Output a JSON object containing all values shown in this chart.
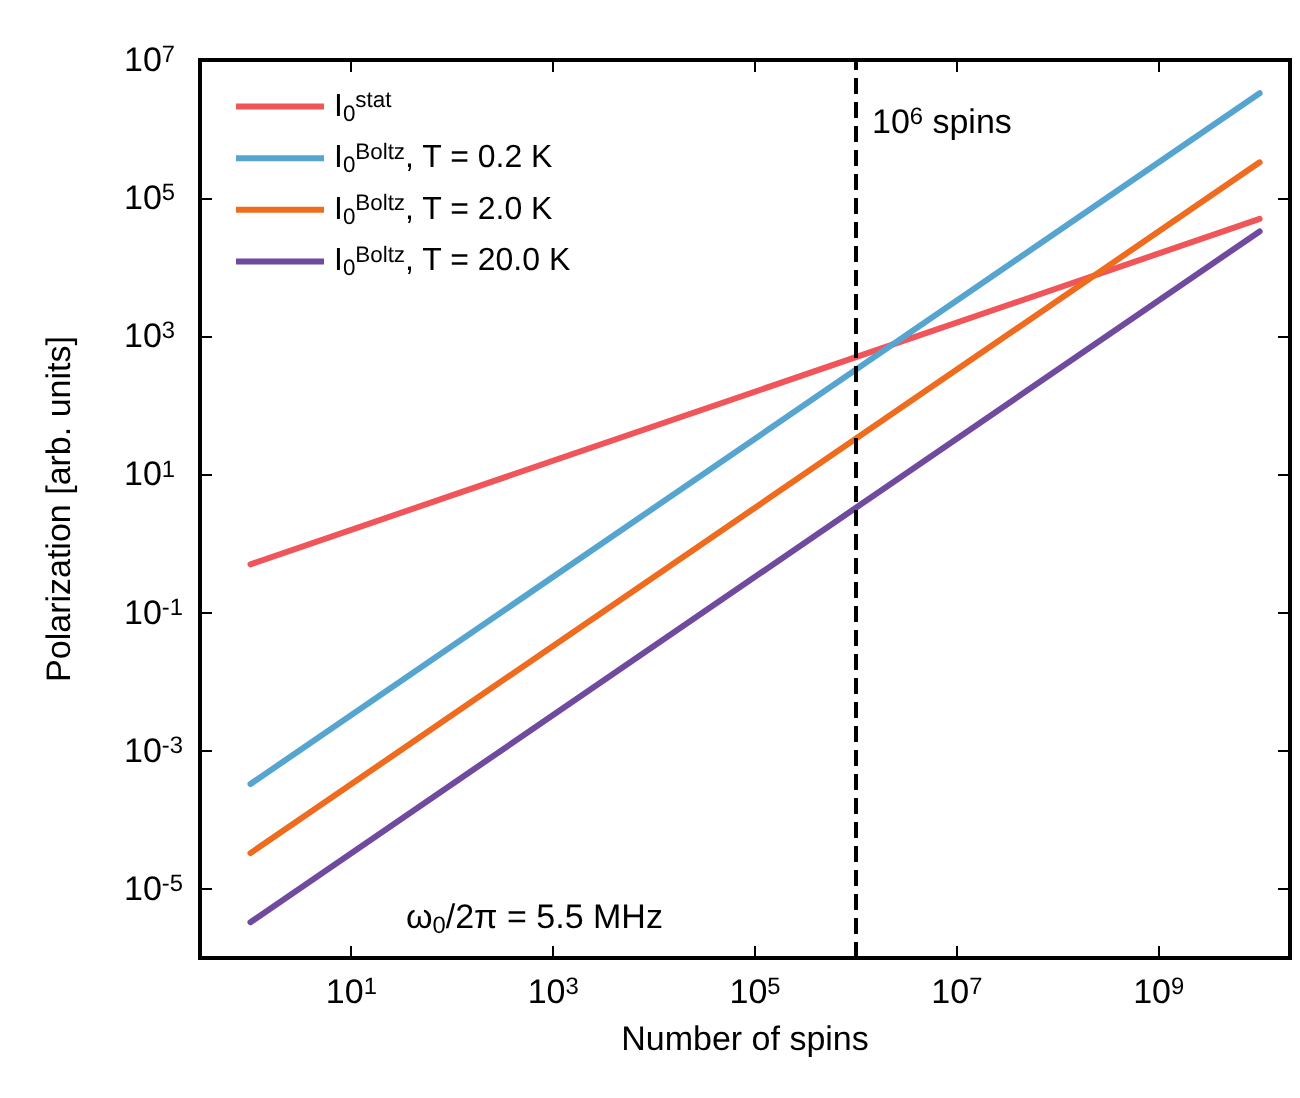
{
  "chart_data": {
    "type": "line",
    "xlabel": "Number of spins",
    "ylabel": "Polarization [arb. units]",
    "x": [
      1,
      10000000000
    ],
    "series": [
      {
        "name": "I$_{0}$$^{stat}$",
        "color": "#f0555a",
        "values": [
          0.5,
          50000
        ]
      },
      {
        "name": "I$_{0}$$^{Boltz}$, T = 0.2 K",
        "color": "#56a5d0",
        "values": [
          0.00033,
          3300000
        ]
      },
      {
        "name": "I$_{0}$$^{Boltz}$, T = 2.0 K",
        "color": "#ef6c1e",
        "values": [
          3.3e-05,
          330000
        ]
      },
      {
        "name": "I$_{0}$$^{Boltz}$, T = 20.0 K",
        "color": "#6f4a9e",
        "values": [
          3.3e-06,
          33000
        ]
      }
    ],
    "log": "xy",
    "xlim": [
      0.316,
      20000000000
    ],
    "ylim": [
      1e-06,
      10000000
    ],
    "xticks": [
      {
        "value": 10,
        "label": "10$^{1}$"
      },
      {
        "value": 1000,
        "label": "10$^{3}$"
      },
      {
        "value": 100000,
        "label": "10$^{5}$"
      },
      {
        "value": 10000000,
        "label": "10$^{7}$"
      },
      {
        "value": 1000000000,
        "label": "10$^{9}$"
      }
    ],
    "yticks": [
      {
        "value": 1e-05,
        "label": "10$^{-5}$"
      },
      {
        "value": 0.001,
        "label": "10$^{-3}$"
      },
      {
        "value": 0.1,
        "label": "10$^{-1}$"
      },
      {
        "value": 10,
        "label": "10$^{1}$"
      },
      {
        "value": 1000,
        "label": "10$^{3}$"
      },
      {
        "value": 100000,
        "label": "10$^{5}$"
      },
      {
        "value": 10000000,
        "label": "10$^{7}$"
      }
    ],
    "ref_lines": [
      {
        "axis": "x",
        "value": 1000000,
        "label": "10$^{6}$ spins",
        "color": "#000000",
        "line_style": "dashed"
      }
    ],
    "annotations": [
      "ω$_{0}$/2π = 5.5 MHz"
    ],
    "grid": false,
    "legend": "top left",
    "marker": "none",
    "line_style": "solid"
  }
}
